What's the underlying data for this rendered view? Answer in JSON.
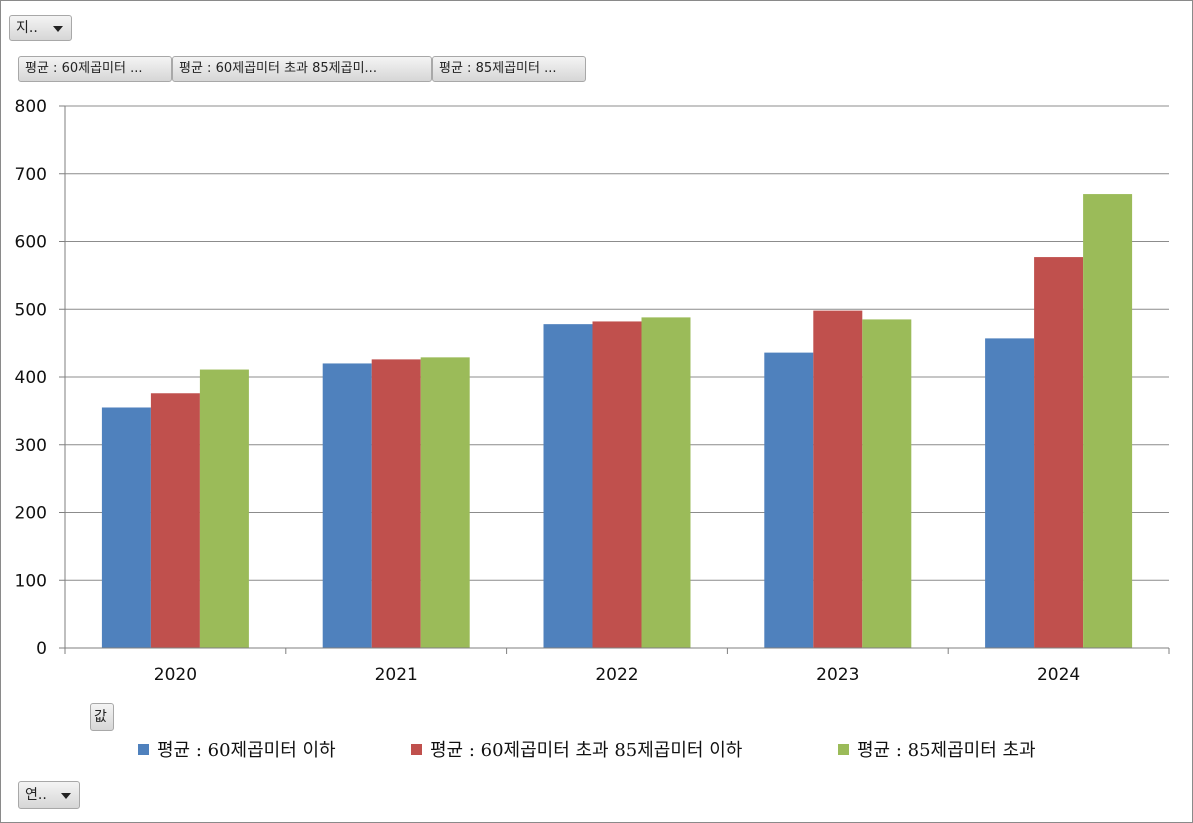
{
  "filters": {
    "top_dropdown_label": "지..",
    "bottom_dropdown_label": "연..",
    "values_button_label": "값",
    "series_buttons": [
      "평균 : 60제곱미터 ...",
      "평균 : 60제곱미터 초과 85제곱미...",
      "평균 : 85제곱미터 ..."
    ]
  },
  "colors": {
    "series1": "#4f81bd",
    "series2": "#c0504d",
    "series3": "#9bbb59",
    "grid": "#8c8c8c"
  },
  "legend": [
    "평균 : 60제곱미터 이하",
    "평균 : 60제곱미터 초과 85제곱미터 이하",
    "평균 : 85제곱미터 초과"
  ],
  "chart_data": {
    "type": "bar",
    "categories": [
      "2020",
      "2021",
      "2022",
      "2023",
      "2024"
    ],
    "series": [
      {
        "name": "평균 : 60제곱미터 이하",
        "values": [
          355,
          420,
          478,
          436,
          457
        ]
      },
      {
        "name": "평균 : 60제곱미터 초과 85제곱미터 이하",
        "values": [
          376,
          426,
          482,
          498,
          577
        ]
      },
      {
        "name": "평균 : 85제곱미터 초과",
        "values": [
          411,
          429,
          488,
          485,
          670
        ]
      }
    ],
    "yticks": [
      "0",
      "100",
      "200",
      "300",
      "400",
      "500",
      "600",
      "700",
      "800"
    ],
    "ylim": [
      0,
      800
    ],
    "grid": true,
    "legend_position": "bottom"
  }
}
